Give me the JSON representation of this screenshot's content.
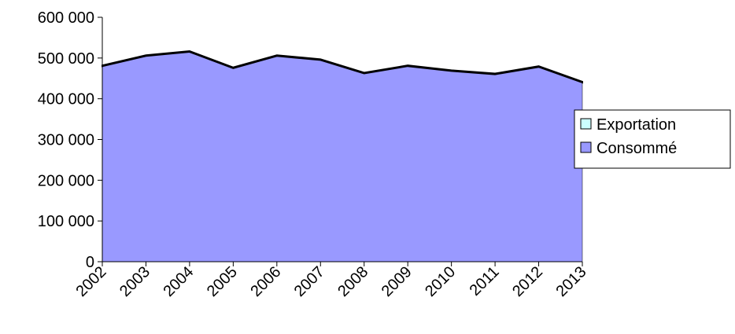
{
  "chart_data": {
    "type": "stacked_area",
    "categories": [
      "2002",
      "2003",
      "2004",
      "2005",
      "2006",
      "2007",
      "2008",
      "2009",
      "2010",
      "2011",
      "2012",
      "2013"
    ],
    "series": [
      {
        "name": "Consommé",
        "color": "#9999ff",
        "values": [
          480000,
          505000,
          515000,
          475000,
          505000,
          495000,
          462000,
          480000,
          468000,
          460000,
          478000,
          440000
        ]
      },
      {
        "name": "Exportation",
        "color": "#ccffff",
        "values": [
          2000,
          2000,
          2000,
          2000,
          2000,
          2000,
          2000,
          2000,
          2000,
          2000,
          2000,
          2000
        ]
      }
    ],
    "ylim": [
      0,
      600000
    ],
    "yticks": [
      0,
      {
        "value": 100000,
        "label": "100 000"
      },
      {
        "value": 200000,
        "label": "200 000"
      },
      {
        "value": 300000,
        "label": "300 000"
      },
      {
        "value": 400000,
        "label": "400 000"
      },
      {
        "value": 500000,
        "label": "500 000"
      },
      {
        "value": 600000,
        "label": "600 000"
      }
    ],
    "legend": "right"
  }
}
